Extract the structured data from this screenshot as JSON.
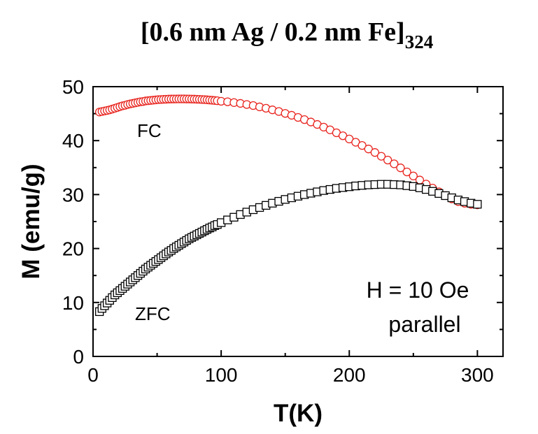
{
  "chart_data": {
    "type": "scatter",
    "title": {
      "main": "[0.6 nm Ag / 0.2 nm Fe]",
      "subscript": "324"
    },
    "xlabel": "T(K)",
    "ylabel": "M (emu/g)",
    "xlim": [
      0,
      320
    ],
    "ylim": [
      0,
      50
    ],
    "xticks": [
      0,
      100,
      200,
      300
    ],
    "yticks": [
      0,
      10,
      20,
      30,
      40,
      50
    ],
    "grid": false,
    "annotations": {
      "line1": "H = 10 Oe",
      "line2": "parallel"
    },
    "series": [
      {
        "name": "FC",
        "marker": "circle",
        "color": "#e8251f",
        "x": [
          5,
          7,
          9,
          11,
          13,
          15,
          17,
          19,
          21,
          23,
          25,
          27,
          29,
          31,
          33,
          35,
          37,
          39,
          41,
          43,
          45,
          47,
          49,
          51,
          53,
          55,
          57,
          59,
          61,
          63,
          65,
          67,
          69,
          71,
          73,
          75,
          77,
          79,
          81,
          83,
          85,
          87,
          89,
          91,
          93,
          95,
          97,
          100,
          105,
          110,
          115,
          120,
          125,
          130,
          135,
          140,
          145,
          150,
          155,
          160,
          165,
          170,
          175,
          180,
          185,
          190,
          195,
          200,
          205,
          210,
          215,
          220,
          225,
          230,
          235,
          240,
          245,
          250,
          255,
          260,
          265,
          270,
          275,
          280,
          285,
          290,
          295,
          300
        ],
        "y": [
          45.3,
          45.4,
          45.5,
          45.6,
          45.7,
          45.85,
          46.0,
          46.15,
          46.3,
          46.45,
          46.55,
          46.7,
          46.8,
          46.9,
          47.0,
          47.1,
          47.2,
          47.25,
          47.35,
          47.4,
          47.45,
          47.5,
          47.55,
          47.6,
          47.62,
          47.65,
          47.67,
          47.7,
          47.71,
          47.72,
          47.72,
          47.73,
          47.73,
          47.73,
          47.72,
          47.72,
          47.7,
          47.69,
          47.67,
          47.65,
          47.62,
          47.6,
          47.56,
          47.52,
          47.48,
          47.44,
          47.39,
          47.3,
          47.2,
          47.05,
          46.9,
          46.7,
          46.5,
          46.25,
          46.0,
          45.7,
          45.4,
          45.05,
          44.7,
          44.3,
          43.9,
          43.45,
          43.0,
          42.5,
          42.0,
          41.45,
          40.9,
          40.3,
          39.7,
          39.1,
          38.45,
          37.8,
          37.1,
          36.4,
          35.7,
          34.95,
          34.2,
          33.45,
          32.7,
          31.95,
          31.2,
          30.5,
          29.8,
          29.2,
          28.7,
          28.4,
          28.2,
          28.1
        ]
      },
      {
        "name": "ZFC",
        "marker": "square",
        "color": "#000000",
        "x": [
          5,
          7,
          9,
          11,
          13,
          15,
          17,
          19,
          21,
          23,
          25,
          27,
          29,
          31,
          33,
          35,
          37,
          39,
          41,
          43,
          45,
          47,
          49,
          51,
          53,
          55,
          57,
          59,
          61,
          63,
          65,
          67,
          69,
          71,
          73,
          75,
          77,
          79,
          81,
          83,
          85,
          87,
          89,
          91,
          93,
          95,
          97,
          100,
          105,
          110,
          115,
          120,
          125,
          130,
          135,
          140,
          145,
          150,
          155,
          160,
          165,
          170,
          175,
          180,
          185,
          190,
          195,
          200,
          205,
          210,
          215,
          220,
          225,
          230,
          235,
          240,
          245,
          250,
          255,
          260,
          265,
          270,
          275,
          280,
          285,
          290,
          295,
          300
        ],
        "y": [
          8.3,
          8.9,
          9.4,
          9.9,
          10.4,
          10.9,
          11.4,
          11.8,
          12.2,
          12.6,
          13.0,
          13.4,
          13.8,
          14.2,
          14.6,
          15.0,
          15.4,
          15.8,
          16.2,
          16.55,
          16.9,
          17.25,
          17.6,
          17.95,
          18.3,
          18.65,
          19.0,
          19.35,
          19.65,
          20.0,
          20.3,
          20.6,
          20.9,
          21.2,
          21.5,
          21.8,
          22.05,
          22.3,
          22.55,
          22.8,
          23.05,
          23.3,
          23.55,
          23.8,
          24.0,
          24.25,
          24.45,
          24.8,
          25.3,
          25.8,
          26.3,
          26.75,
          27.2,
          27.6,
          28.0,
          28.4,
          28.75,
          29.1,
          29.4,
          29.7,
          30.0,
          30.25,
          30.5,
          30.75,
          30.95,
          31.15,
          31.3,
          31.45,
          31.6,
          31.7,
          31.8,
          31.85,
          31.9,
          31.9,
          31.85,
          31.8,
          31.65,
          31.5,
          31.25,
          30.95,
          30.6,
          30.2,
          29.8,
          29.4,
          29.0,
          28.7,
          28.4,
          28.2
        ]
      }
    ]
  }
}
